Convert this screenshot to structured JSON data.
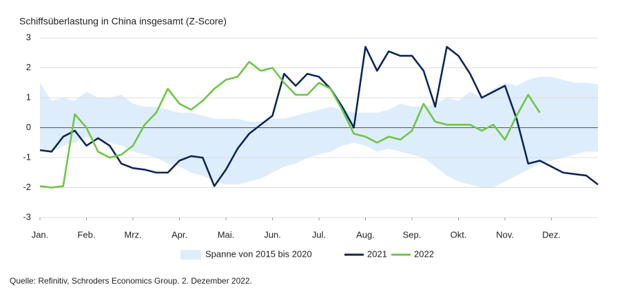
{
  "chart_data": {
    "type": "line",
    "title": "Schiffsüberlastung in China insgesamt (Z-Score)",
    "source": "Quelle: Refinitiv, Schroders Economics Group. 2. Dezember 2022.",
    "x": [
      0,
      0.25,
      0.5,
      0.75,
      1,
      1.25,
      1.5,
      1.75,
      2,
      2.25,
      2.5,
      2.75,
      3,
      3.25,
      3.5,
      3.75,
      4,
      4.25,
      4.5,
      4.75,
      5,
      5.25,
      5.5,
      5.75,
      6,
      6.25,
      6.5,
      6.75,
      7,
      7.25,
      7.5,
      7.75,
      8,
      8.25,
      8.5,
      8.75,
      9,
      9.25,
      9.5,
      9.75,
      10,
      10.25,
      10.5,
      10.75,
      11,
      11.25,
      11.5,
      11.75,
      12
    ],
    "xlim": [
      0,
      12
    ],
    "xticks": [
      {
        "value": 0,
        "label": "Jan."
      },
      {
        "value": 1,
        "label": "Feb."
      },
      {
        "value": 2,
        "label": "Mrz."
      },
      {
        "value": 3,
        "label": "Apr."
      },
      {
        "value": 4,
        "label": "Mai."
      },
      {
        "value": 5,
        "label": "Jun."
      },
      {
        "value": 6,
        "label": "Jul."
      },
      {
        "value": 7,
        "label": "Aug."
      },
      {
        "value": 8,
        "label": "Sep."
      },
      {
        "value": 9,
        "label": "Okt."
      },
      {
        "value": 10,
        "label": "Nov."
      },
      {
        "value": 11,
        "label": "Dez."
      }
    ],
    "ylim": [
      -3,
      3
    ],
    "yticks": [
      3,
      2,
      1,
      0,
      -1,
      -2,
      -3
    ],
    "grid": true,
    "band": {
      "name": "Spanne von 2015 bis 2020",
      "color": "#deedfb",
      "upper": [
        1.5,
        0.9,
        1.0,
        0.9,
        1.2,
        1.0,
        1.0,
        1.1,
        0.8,
        0.7,
        0.7,
        0.6,
        0.5,
        0.5,
        0.4,
        0.3,
        0.3,
        0.3,
        0.2,
        0.2,
        0.3,
        0.3,
        0.4,
        0.5,
        0.6,
        0.7,
        0.6,
        0.5,
        0.5,
        0.5,
        0.6,
        0.8,
        0.7,
        0.7,
        0.8,
        1.0,
        0.9,
        1.2,
        1.0,
        1.3,
        1.5,
        1.4,
        1.6,
        1.7,
        1.7,
        1.6,
        1.5,
        1.5,
        1.45
      ],
      "lower": [
        -0.7,
        -0.8,
        -0.6,
        -0.5,
        -0.3,
        -0.4,
        -0.5,
        -0.6,
        -0.8,
        -0.9,
        -1.0,
        -1.2,
        -1.3,
        -1.5,
        -1.6,
        -1.8,
        -1.9,
        -1.9,
        -1.8,
        -1.7,
        -1.5,
        -1.3,
        -1.2,
        -1.0,
        -0.9,
        -0.8,
        -0.6,
        -0.5,
        -0.6,
        -0.8,
        -0.7,
        -0.8,
        -0.9,
        -1.0,
        -1.3,
        -1.6,
        -1.8,
        -1.9,
        -2.0,
        -2.0,
        -1.8,
        -1.6,
        -1.4,
        -1.2,
        -1.1,
        -1.0,
        -0.9,
        -0.8,
        -0.8
      ]
    },
    "series": [
      {
        "name": "2021",
        "color": "#0b2559",
        "values": [
          -0.75,
          -0.8,
          -0.3,
          -0.1,
          -0.6,
          -0.35,
          -0.6,
          -1.2,
          -1.35,
          -1.4,
          -1.5,
          -1.5,
          -1.1,
          -0.95,
          -1.0,
          -1.95,
          -1.4,
          -0.7,
          -0.2,
          0.1,
          0.4,
          1.8,
          1.4,
          1.8,
          1.7,
          1.3,
          0.7,
          0.0,
          2.7,
          1.9,
          2.55,
          2.4,
          2.4,
          1.9,
          0.7,
          2.7,
          2.4,
          1.8,
          1.0,
          1.2,
          1.4,
          0.3,
          -1.2,
          -1.1,
          -1.3,
          -1.5,
          -1.55,
          -1.6,
          -1.9
        ]
      },
      {
        "name": "2022",
        "color": "#6cc644",
        "values": [
          -1.95,
          -2.0,
          -1.95,
          0.45,
          0.0,
          -0.8,
          -1.0,
          -0.9,
          -0.6,
          0.1,
          0.5,
          1.3,
          0.8,
          0.6,
          0.9,
          1.3,
          1.6,
          1.7,
          2.2,
          1.9,
          2.0,
          1.5,
          1.1,
          1.1,
          1.5,
          1.3,
          0.6,
          -0.2,
          -0.3,
          -0.5,
          -0.3,
          -0.4,
          -0.1,
          0.8,
          0.2,
          0.1,
          0.1,
          0.1,
          -0.1,
          0.1,
          -0.4,
          0.4,
          1.1,
          0.5,
          null,
          null,
          null,
          null,
          null
        ]
      }
    ]
  }
}
